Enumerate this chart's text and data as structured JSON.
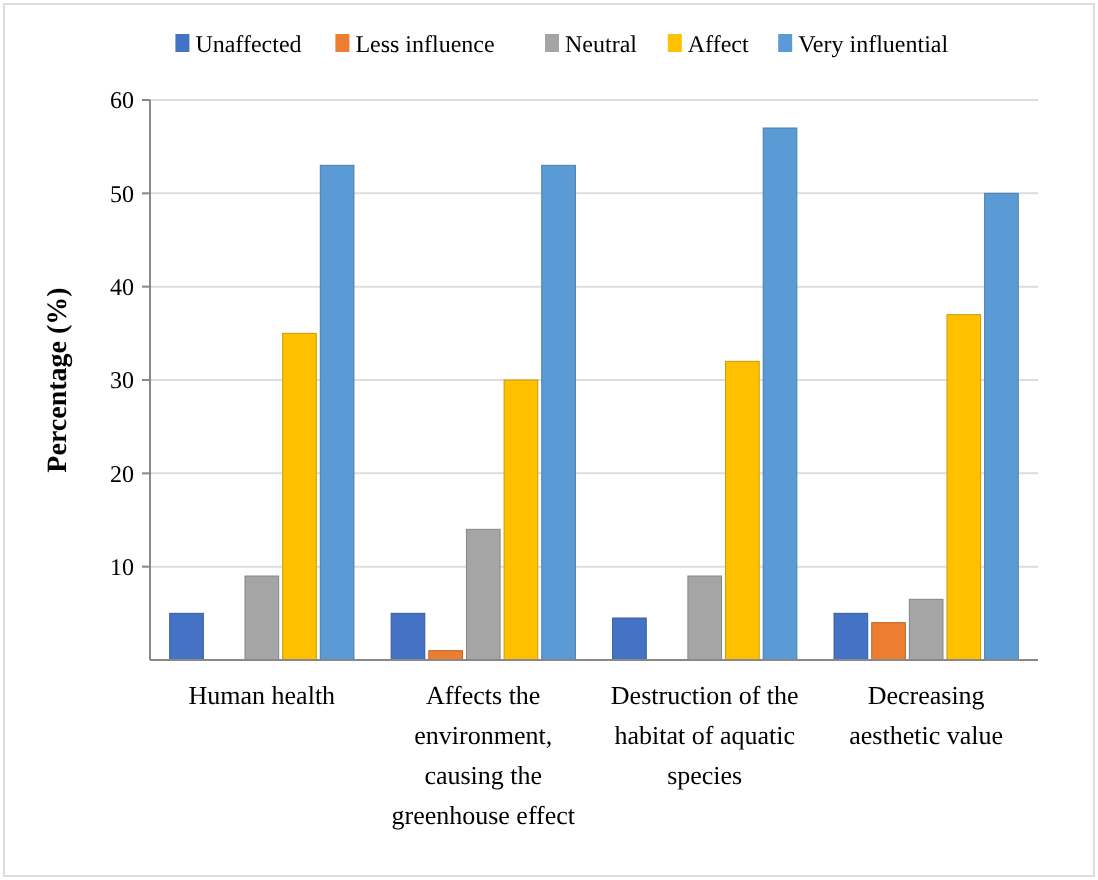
{
  "chart_data": {
    "type": "bar",
    "ylabel": "Percentage (%)",
    "categories": [
      "Human health",
      "Affects the environment, causing the greenhouse effect",
      "Destruction of the habitat of aquatic species",
      "Decreasing aesthetic value"
    ],
    "series": [
      {
        "name": "Unaffected",
        "color": "#4472c4",
        "values": [
          5,
          5,
          4.5,
          5
        ]
      },
      {
        "name": "Less influence",
        "color": "#ed7d31",
        "values": [
          0,
          1,
          0,
          4
        ]
      },
      {
        "name": "Neutral",
        "color": "#a5a5a5",
        "values": [
          9,
          14,
          9,
          6.5
        ]
      },
      {
        "name": "Affect",
        "color": "#ffc000",
        "values": [
          35,
          30,
          32,
          37
        ]
      },
      {
        "name": "Very influential",
        "color": "#5b9bd5",
        "values": [
          53,
          53,
          57,
          50
        ]
      }
    ],
    "ylim": [
      0,
      60
    ],
    "yticks": [
      10,
      20,
      30,
      40,
      50,
      60
    ],
    "grid": "y",
    "legend": "top"
  }
}
